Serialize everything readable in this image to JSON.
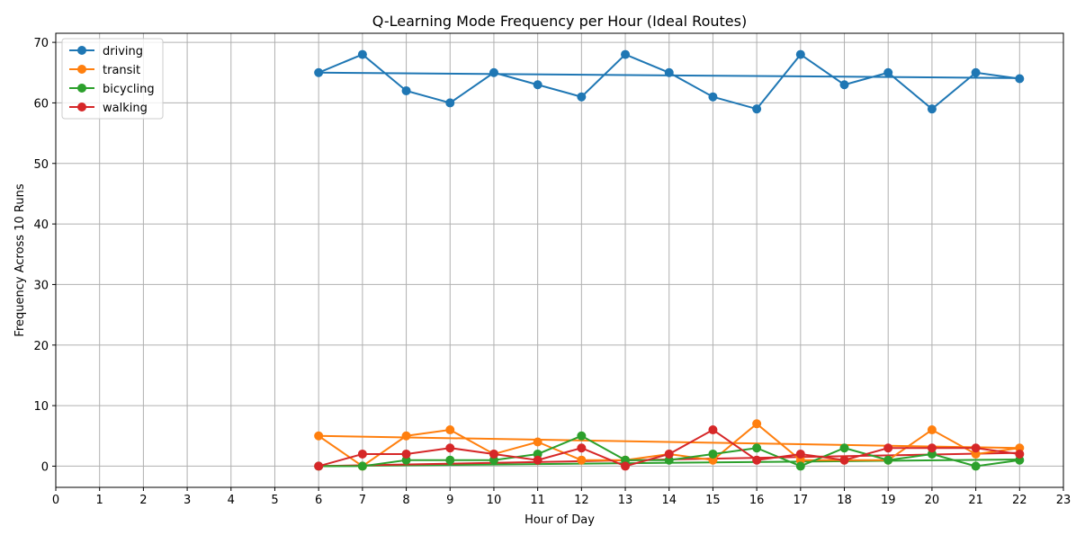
{
  "chart_data": {
    "type": "line",
    "title": "Q-Learning Mode Frequency per Hour (Ideal Routes)",
    "xlabel": "Hour of Day",
    "ylabel": "Frequency Across 10 Runs",
    "xlim": [
      0,
      23
    ],
    "ylim": [
      -3.5,
      71.5
    ],
    "x_ticks": [
      "0",
      "1",
      "2",
      "3",
      "4",
      "5",
      "6",
      "7",
      "8",
      "9",
      "10",
      "11",
      "12",
      "13",
      "14",
      "15",
      "16",
      "17",
      "18",
      "19",
      "20",
      "21",
      "22",
      "23"
    ],
    "y_ticks": [
      "0",
      "10",
      "20",
      "30",
      "40",
      "50",
      "60",
      "70"
    ],
    "grid": true,
    "legend_position": "top-left",
    "x": [
      6,
      7,
      8,
      9,
      10,
      11,
      12,
      13,
      14,
      15,
      16,
      17,
      18,
      19,
      20,
      21,
      22
    ],
    "series": [
      {
        "name": "driving",
        "color": "#1f77b4",
        "values": [
          65,
          68,
          62,
          60,
          65,
          63,
          61,
          68,
          65,
          61,
          59,
          68,
          63,
          65,
          59,
          65,
          64
        ],
        "trend": [
          65.0,
          64.1
        ]
      },
      {
        "name": "transit",
        "color": "#ff7f0e",
        "values": [
          5,
          0,
          5,
          6,
          2,
          4,
          1,
          1,
          2,
          1,
          7,
          1,
          1,
          1,
          6,
          2,
          3
        ],
        "trend": [
          5.0,
          3.0
        ]
      },
      {
        "name": "bicycling",
        "color": "#2ca02c",
        "values": [
          0,
          0,
          1,
          1,
          1,
          2,
          5,
          1,
          1,
          2,
          3,
          0,
          3,
          1,
          2,
          0,
          1
        ],
        "trend": [
          0.0,
          1.1
        ]
      },
      {
        "name": "walking",
        "color": "#d62728",
        "values": [
          0,
          2,
          2,
          3,
          2,
          1,
          3,
          0,
          2,
          6,
          1,
          2,
          1,
          3,
          3,
          3,
          2
        ],
        "trend": [
          0.0,
          2.2
        ]
      }
    ]
  }
}
